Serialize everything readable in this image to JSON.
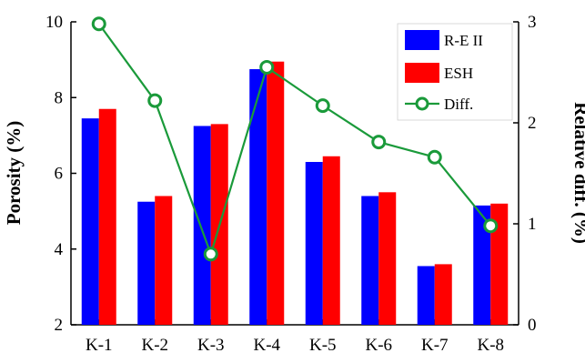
{
  "chart_data": {
    "type": "bar",
    "categories": [
      "K-1",
      "K-2",
      "K-3",
      "K-4",
      "K-5",
      "K-6",
      "K-7",
      "K-8"
    ],
    "series": [
      {
        "name": "R-E II",
        "axis": "left",
        "kind": "bar",
        "color": "#0000ff",
        "values": [
          7.45,
          5.25,
          7.25,
          8.75,
          6.3,
          5.4,
          3.55,
          5.15
        ]
      },
      {
        "name": "ESH",
        "axis": "left",
        "kind": "bar",
        "color": "#ff0000",
        "values": [
          7.7,
          5.4,
          7.3,
          8.95,
          6.45,
          5.5,
          3.6,
          5.2
        ]
      },
      {
        "name": "Diff.",
        "axis": "right",
        "kind": "line",
        "color": "#1a9a3a",
        "values": [
          2.98,
          2.22,
          0.7,
          2.55,
          2.17,
          1.81,
          1.66,
          0.98
        ]
      }
    ],
    "ylabel": "Porosity (%)",
    "ylim": [
      2,
      10
    ],
    "yticks": [
      2,
      4,
      6,
      8,
      10
    ],
    "y2label": "Relative diff. (%)",
    "y2lim": [
      0,
      3
    ],
    "y2ticks": [
      0,
      1,
      2,
      3
    ],
    "legend_position": "top-right",
    "grid": false
  }
}
